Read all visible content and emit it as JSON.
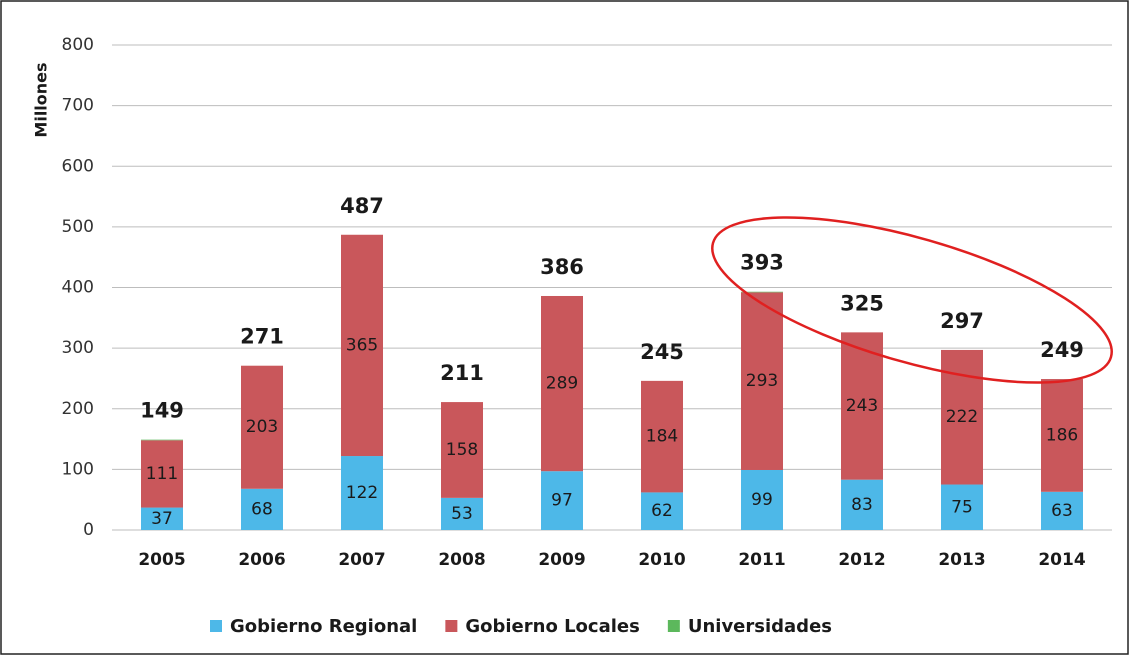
{
  "chart_data": {
    "type": "stacked_bar",
    "y_label": "Millones",
    "categories": [
      "2005",
      "2006",
      "2007",
      "2008",
      "2009",
      "2010",
      "2011",
      "2012",
      "2013",
      "2014"
    ],
    "series": [
      {
        "name": "Gobierno Regional",
        "color": "#4db8e8",
        "values": [
          37,
          68,
          122,
          53,
          97,
          62,
          99,
          83,
          75,
          63
        ]
      },
      {
        "name": "Gobierno Locales",
        "color": "#c9575b",
        "values": [
          111,
          203,
          365,
          158,
          289,
          184,
          293,
          243,
          222,
          186
        ]
      },
      {
        "name": "Universidades",
        "color": "#5cb85c",
        "values": [
          1,
          0,
          0,
          0,
          0,
          0,
          1,
          0,
          0,
          0
        ]
      }
    ],
    "totals": [
      149,
      271,
      487,
      211,
      386,
      245,
      393,
      325,
      297,
      249
    ],
    "ylim": [
      0,
      800
    ],
    "yticks": [
      0,
      100,
      200,
      300,
      400,
      500,
      600,
      700,
      800
    ],
    "grid": true
  }
}
